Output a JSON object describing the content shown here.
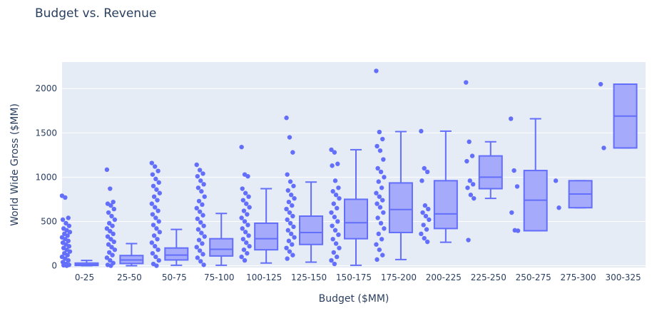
{
  "chart_data": {
    "type": "box",
    "title": "Budget vs. Revenue",
    "xlabel": "Budget ($MM)",
    "ylabel": "World Wide Gross ($MM)",
    "ylim": [
      -20,
      2300
    ],
    "yticks": [
      0,
      500,
      1000,
      1500,
      2000
    ],
    "grid": true,
    "colors": {
      "box": "#636efa",
      "fill": "#a5aafa",
      "plot_bg": "#e5ecf6",
      "grid": "#ffffff",
      "text": "#2a3f5f"
    },
    "categories": [
      "0-25",
      "25-50",
      "50-75",
      "75-100",
      "100-125",
      "125-150",
      "150-175",
      "175-200",
      "200-225",
      "225-250",
      "250-275",
      "275-300",
      "300-325"
    ],
    "boxes": [
      {
        "q1": 3,
        "median": 12,
        "q3": 30,
        "lower": 0,
        "upper": 60,
        "n_points": 180
      },
      {
        "q1": 25,
        "median": 65,
        "q3": 115,
        "lower": 0,
        "upper": 250,
        "n_points": 150
      },
      {
        "q1": 65,
        "median": 120,
        "q3": 200,
        "lower": 5,
        "upper": 410,
        "n_points": 130
      },
      {
        "q1": 110,
        "median": 185,
        "q3": 305,
        "lower": 5,
        "upper": 590,
        "n_points": 110
      },
      {
        "q1": 180,
        "median": 305,
        "q3": 480,
        "lower": 30,
        "upper": 870,
        "n_points": 70
      },
      {
        "q1": 240,
        "median": 375,
        "q3": 560,
        "lower": 40,
        "upper": 945,
        "n_points": 60
      },
      {
        "q1": 305,
        "median": 485,
        "q3": 750,
        "lower": 5,
        "upper": 1310,
        "n_points": 45
      },
      {
        "q1": 375,
        "median": 635,
        "q3": 935,
        "lower": 70,
        "upper": 1515,
        "n_points": 35
      },
      {
        "q1": 420,
        "median": 585,
        "q3": 960,
        "lower": 265,
        "upper": 1520,
        "n_points": 15
      },
      {
        "q1": 870,
        "median": 1000,
        "q3": 1240,
        "lower": 760,
        "upper": 1400,
        "n_points": 10
      },
      {
        "q1": 395,
        "median": 740,
        "q3": 1075,
        "lower": 395,
        "upper": 1660,
        "n_points": 7
      },
      {
        "q1": 655,
        "median": 810,
        "q3": 960,
        "lower": 655,
        "upper": 960,
        "n_points": 2
      },
      {
        "q1": 1330,
        "median": 1690,
        "q3": 2050,
        "lower": 1330,
        "upper": 2050,
        "n_points": 2
      }
    ],
    "points": [
      [
        790,
        770,
        540,
        520,
        480,
        450,
        420,
        400,
        380,
        360,
        340,
        320,
        300,
        280,
        260,
        240,
        220,
        200,
        180,
        160,
        140,
        120,
        100,
        80,
        60,
        40,
        20,
        10,
        5,
        0
      ],
      [
        1085,
        870,
        720,
        700,
        680,
        640,
        600,
        560,
        520,
        480,
        450,
        420,
        390,
        360,
        330,
        300,
        270,
        240,
        210,
        180,
        150,
        120,
        90,
        60,
        30,
        10,
        0
      ],
      [
        1160,
        1120,
        1070,
        1030,
        980,
        940,
        900,
        860,
        820,
        780,
        740,
        700,
        660,
        620,
        580,
        540,
        500,
        460,
        420,
        380,
        340,
        300,
        260,
        220,
        180,
        140,
        100,
        60,
        20,
        0
      ],
      [
        1140,
        1080,
        1040,
        1010,
        960,
        920,
        880,
        840,
        780,
        730,
        690,
        650,
        610,
        570,
        530,
        490,
        450,
        410,
        370,
        330,
        290,
        250,
        210,
        170,
        130,
        90,
        50,
        10
      ],
      [
        1340,
        1030,
        1010,
        870,
        820,
        780,
        740,
        700,
        660,
        620,
        580,
        540,
        500,
        460,
        420,
        380,
        340,
        300,
        260,
        220,
        180,
        140,
        100,
        60
      ],
      [
        1670,
        1450,
        1280,
        1030,
        950,
        900,
        850,
        800,
        760,
        720,
        680,
        640,
        600,
        560,
        520,
        480,
        440,
        400,
        360,
        320,
        280,
        240,
        200,
        160,
        120,
        80
      ],
      [
        1310,
        1280,
        1150,
        1130,
        960,
        880,
        840,
        800,
        760,
        700,
        650,
        600,
        550,
        500,
        450,
        400,
        350,
        300,
        250,
        200,
        150,
        100,
        60,
        20
      ],
      [
        2200,
        1510,
        1430,
        1350,
        1300,
        1200,
        1100,
        1060,
        1000,
        950,
        880,
        820,
        780,
        740,
        700,
        660,
        600,
        540,
        480,
        420,
        360,
        300,
        240,
        180,
        120,
        70
      ],
      [
        1520,
        1100,
        1060,
        960,
        680,
        640,
        600,
        560,
        520,
        460,
        410,
        360,
        310,
        270
      ],
      [
        2070,
        1400,
        1240,
        1180,
        960,
        920,
        880,
        800,
        760,
        290
      ],
      [
        1660,
        1075,
        895,
        600,
        400,
        395
      ],
      [
        960,
        655
      ],
      [
        2050,
        1330
      ]
    ]
  }
}
